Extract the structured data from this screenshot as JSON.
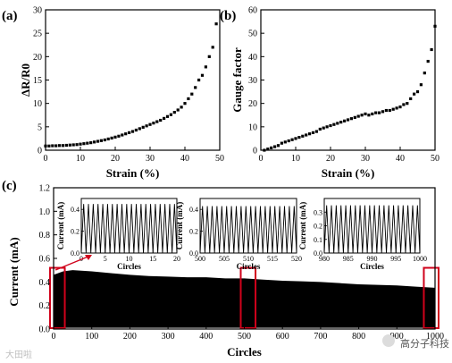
{
  "watermark": {
    "left_text": "大田啦",
    "right_text": "高分子科技"
  },
  "chart_data": [
    {
      "panel": "(a)",
      "type": "scatter",
      "xlabel": "Strain (%)",
      "ylabel": "ΔR/R0",
      "xlim": [
        0,
        50
      ],
      "ylim": [
        0,
        30
      ],
      "xticks": [
        0,
        10,
        20,
        30,
        40,
        50
      ],
      "yticks": [
        0,
        5,
        10,
        15,
        20,
        25,
        30
      ],
      "x": [
        0,
        1,
        2,
        3,
        4,
        5,
        6,
        7,
        8,
        9,
        10,
        11,
        12,
        13,
        14,
        15,
        16,
        17,
        18,
        19,
        20,
        21,
        22,
        23,
        24,
        25,
        26,
        27,
        28,
        29,
        30,
        31,
        32,
        33,
        34,
        35,
        36,
        37,
        38,
        39,
        40,
        41,
        42,
        43,
        44,
        45,
        46,
        47,
        48,
        49
      ],
      "y": [
        0.9,
        0.9,
        0.95,
        0.95,
        1.0,
        1.0,
        1.05,
        1.1,
        1.15,
        1.2,
        1.3,
        1.4,
        1.5,
        1.6,
        1.75,
        1.9,
        2.05,
        2.2,
        2.4,
        2.6,
        2.8,
        3.0,
        3.25,
        3.5,
        3.75,
        4.0,
        4.3,
        4.6,
        4.9,
        5.2,
        5.5,
        5.8,
        6.1,
        6.4,
        6.8,
        7.2,
        7.6,
        8.1,
        8.6,
        9.2,
        10.0,
        11.0,
        12.0,
        13.4,
        15.0,
        16.0,
        17.8,
        20.0,
        22.0,
        27.0
      ]
    },
    {
      "panel": "(b)",
      "type": "scatter",
      "xlabel": "Strain (%)",
      "ylabel": "Gauge factor",
      "xlim": [
        0,
        50
      ],
      "ylim": [
        0,
        60
      ],
      "xticks": [
        0,
        10,
        20,
        30,
        40,
        50
      ],
      "yticks": [
        0,
        10,
        20,
        30,
        40,
        50,
        60
      ],
      "x": [
        1,
        2,
        3,
        4,
        5,
        6,
        7,
        8,
        9,
        10,
        11,
        12,
        13,
        14,
        15,
        16,
        17,
        18,
        19,
        20,
        21,
        22,
        23,
        24,
        25,
        26,
        27,
        28,
        29,
        30,
        31,
        32,
        33,
        34,
        35,
        36,
        37,
        38,
        39,
        40,
        41,
        42,
        43,
        44,
        45,
        46,
        47,
        48,
        49,
        50
      ],
      "y": [
        0,
        0.5,
        1,
        1.5,
        2,
        3,
        3.5,
        4,
        4.5,
        5,
        5.5,
        6,
        6.5,
        7,
        7.5,
        8,
        9,
        9.5,
        10,
        10.5,
        11,
        11.5,
        12,
        12.5,
        13,
        13.5,
        14,
        14.5,
        15,
        15.5,
        15,
        15.5,
        16,
        16,
        16.5,
        17,
        17,
        17.5,
        18,
        18.5,
        19.5,
        20,
        22,
        24,
        25,
        28,
        33,
        38,
        43,
        53
      ]
    },
    {
      "panel": "(c)",
      "type": "area",
      "xlabel": "Circles",
      "ylabel": "Current (mA)",
      "xlim": [
        0,
        1000
      ],
      "ylim": [
        0,
        1.2
      ],
      "xticks": [
        0,
        100,
        200,
        300,
        400,
        500,
        600,
        700,
        800,
        900,
        1000
      ],
      "yticks": [
        0.0,
        0.2,
        0.4,
        0.6,
        0.8,
        1.0,
        1.2
      ],
      "upper_envelope": {
        "x": [
          0,
          25,
          50,
          100,
          150,
          200,
          250,
          300,
          350,
          400,
          450,
          500,
          550,
          600,
          650,
          700,
          750,
          800,
          850,
          900,
          950,
          1000
        ],
        "y": [
          0.46,
          0.49,
          0.5,
          0.49,
          0.475,
          0.46,
          0.45,
          0.445,
          0.44,
          0.44,
          0.43,
          0.43,
          0.42,
          0.41,
          0.405,
          0.4,
          0.39,
          0.38,
          0.375,
          0.37,
          0.36,
          0.35
        ]
      },
      "lower_envelope": 0.01,
      "highlight_boxes": [
        [
          0,
          20
        ],
        [
          500,
          520
        ],
        [
          980,
          1000
        ]
      ],
      "insets": [
        {
          "xlabel": "Circles",
          "ylabel": "Current (mA)",
          "xlim": [
            0,
            20
          ],
          "ylim": [
            0,
            0.5
          ],
          "xticks": [
            0,
            5,
            10,
            15,
            20
          ],
          "yticks": [
            0.0,
            0.2,
            0.4
          ],
          "cycles": 20,
          "amplitude": 0.45
        },
        {
          "xlabel": "Circles",
          "ylabel": "Current (mA)",
          "xlim": [
            500,
            520
          ],
          "ylim": [
            0,
            0.5
          ],
          "xticks": [
            500,
            505,
            510,
            515,
            520
          ],
          "yticks": [
            0.0,
            0.2,
            0.4
          ],
          "cycles": 20,
          "amplitude": 0.43
        },
        {
          "xlabel": "Circles",
          "ylabel": "Current (mA)",
          "xlim": [
            980,
            1000
          ],
          "ylim": [
            0,
            0.4
          ],
          "xticks": [
            980,
            985,
            990,
            995,
            1000
          ],
          "yticks": [
            0.0,
            0.1,
            0.2,
            0.3
          ],
          "cycles": 20,
          "amplitude": 0.35
        }
      ]
    }
  ]
}
